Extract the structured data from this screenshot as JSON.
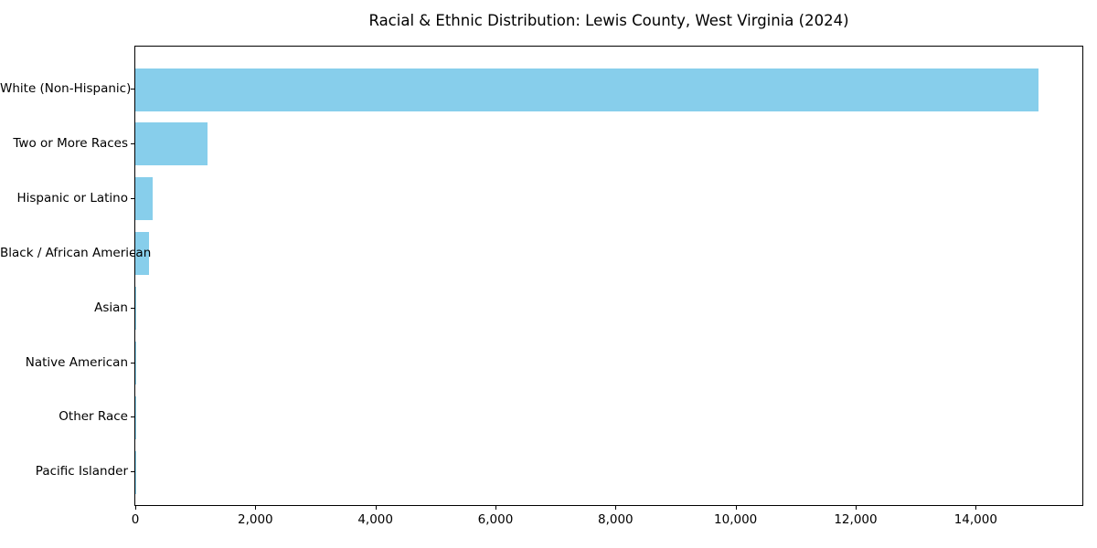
{
  "title": "Racial & Ethnic Distribution: Lewis County, West Virginia (2024)",
  "colors": {
    "bar": "#87CEEB",
    "axis": "#000000",
    "text": "#000000",
    "background": "#FFFFFF"
  },
  "chart_data": {
    "type": "bar",
    "orientation": "horizontal",
    "title": "Racial & Ethnic Distribution: Lewis County, West Virginia (2024)",
    "xlabel": "",
    "ylabel": "",
    "categories": [
      "White (Non-Hispanic)",
      "Two or More Races",
      "Hispanic or Latino",
      "Black / African American",
      "Asian",
      "Native American",
      "Other Race",
      "Pacific Islander"
    ],
    "values": [
      15040,
      1205,
      290,
      228,
      20,
      15,
      10,
      5
    ],
    "bar_color": "#87CEEB",
    "xlim": [
      0,
      15777
    ],
    "x_ticks": [
      0,
      2000,
      4000,
      6000,
      8000,
      10000,
      12000,
      14000
    ],
    "x_tick_labels": [
      "0",
      "2,000",
      "4,000",
      "6,000",
      "8,000",
      "10,000",
      "12,000",
      "14,000"
    ],
    "grid": false,
    "legend": null
  }
}
